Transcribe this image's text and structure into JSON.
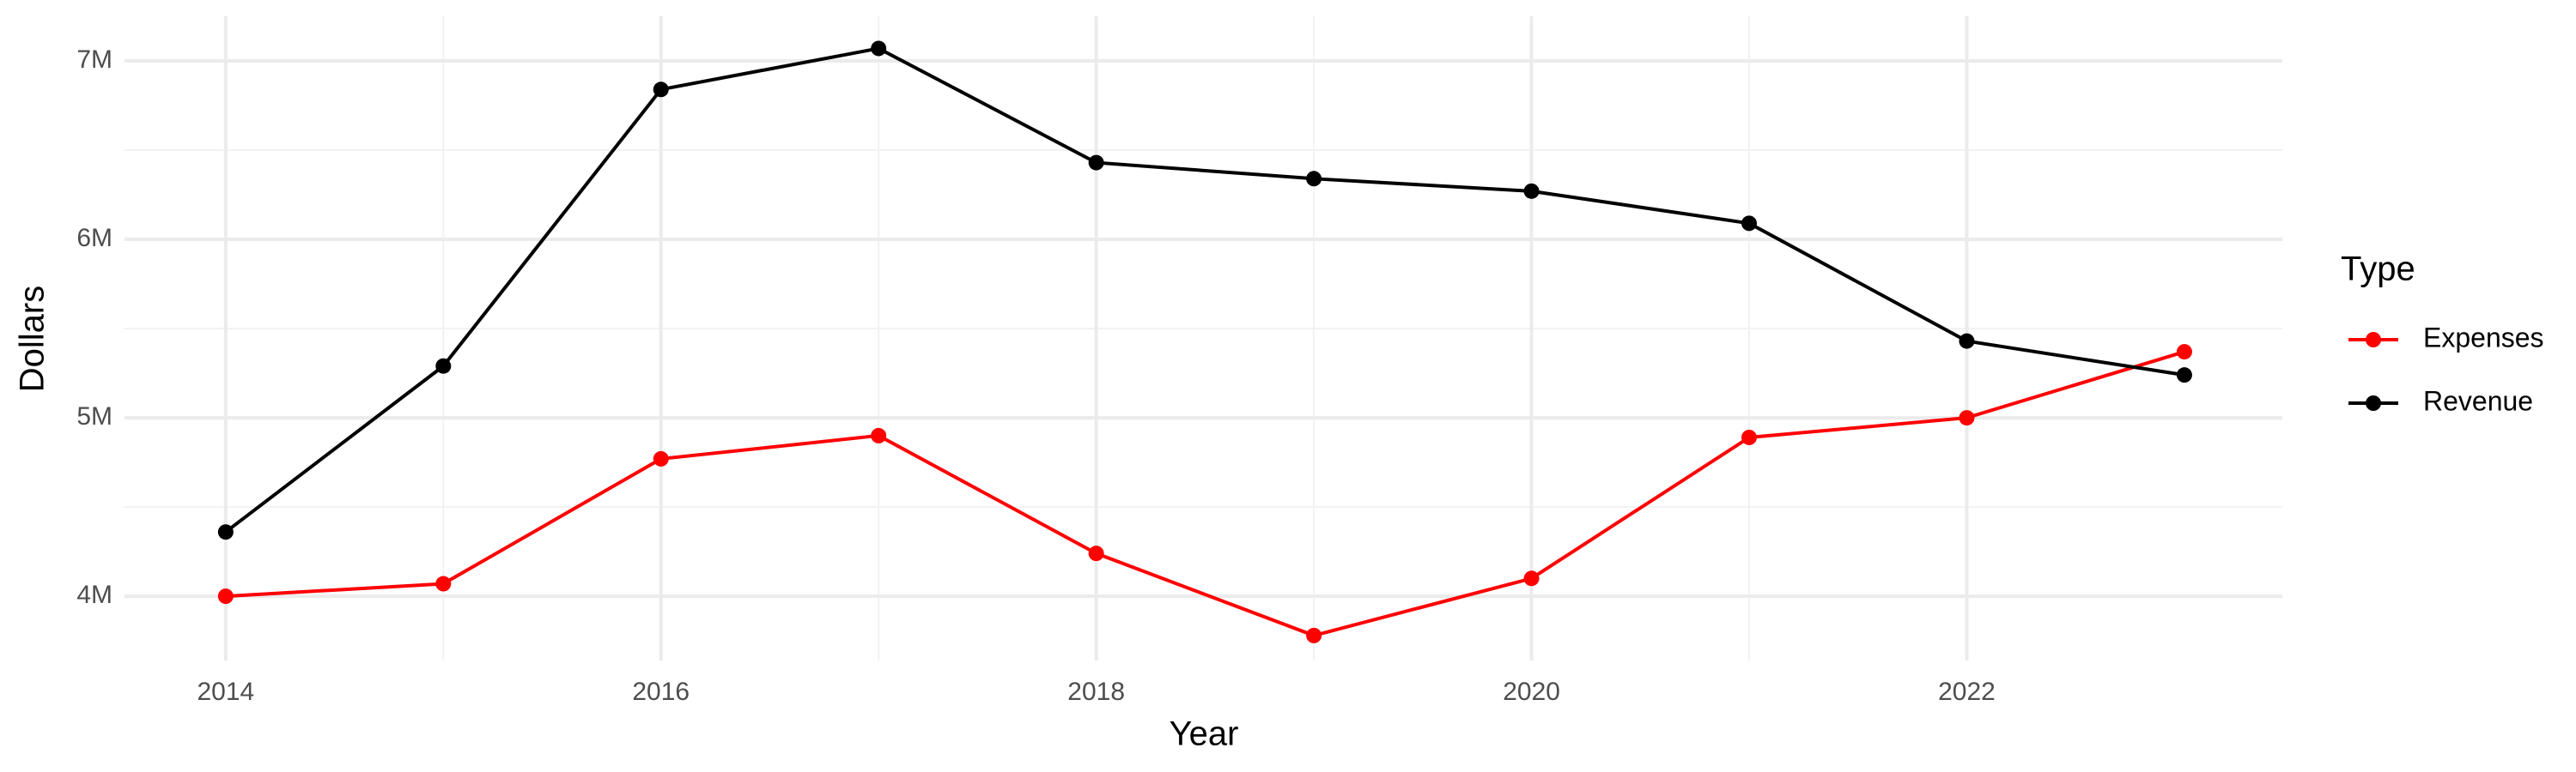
{
  "chart_data": {
    "type": "line",
    "x_label": "Year",
    "y_label": "Dollars",
    "legend_title": "Type",
    "legend": "right",
    "grid": true,
    "x": [
      2014,
      2015,
      2016,
      2017,
      2018,
      2019,
      2020,
      2021,
      2022,
      2023
    ],
    "series": [
      {
        "name": "Expenses",
        "color": "#ff0000",
        "values": [
          4000000,
          4070000,
          4770000,
          4900000,
          4240000,
          3780000,
          4100000,
          4890000,
          5000000,
          5370000
        ]
      },
      {
        "name": "Revenue",
        "color": "#000000",
        "values": [
          4360000,
          5290000,
          6840000,
          7070000,
          6430000,
          6340000,
          6270000,
          6090000,
          5430000,
          5240000
        ]
      }
    ],
    "xlim": [
      2013.535,
      2023.45
    ],
    "xticks": [
      2014,
      2016,
      2018,
      2020,
      2022
    ],
    "ylim": [
      3640000,
      7250000
    ],
    "yticks": [
      {
        "value": 4000000,
        "label": "4M"
      },
      {
        "value": 5000000,
        "label": "5M"
      },
      {
        "value": 6000000,
        "label": "6M"
      },
      {
        "value": 7000000,
        "label": "7M"
      }
    ]
  }
}
